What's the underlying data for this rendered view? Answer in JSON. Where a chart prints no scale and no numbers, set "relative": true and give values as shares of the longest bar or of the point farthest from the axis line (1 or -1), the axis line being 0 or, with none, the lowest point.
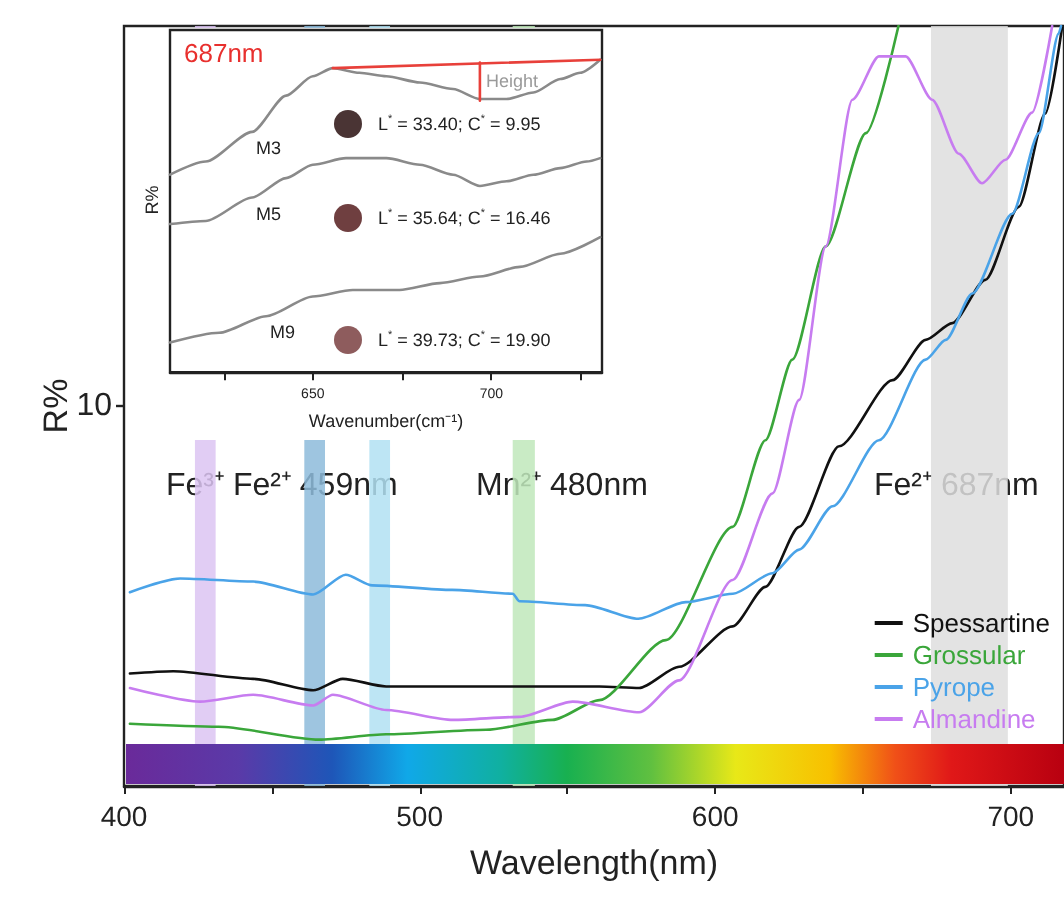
{
  "chart_data": [
    {
      "type": "line",
      "xlabel": "Wavelength(nm)",
      "ylabel": "R%",
      "relative": true,
      "xlim": [
        400,
        718
      ],
      "xticks": [
        400,
        {
          "value": 450,
          "label": null
        },
        500,
        {
          "value": 550,
          "label": null
        },
        600,
        {
          "value": 650,
          "label": null
        },
        700
      ],
      "legend": "bottom right",
      "series": [
        {
          "name": "Spessartine",
          "color": "#111111",
          "x": [
            402,
            416.7,
            443.7,
            464,
            474,
            488.7,
            533.8,
            560.8,
            574.3,
            587.8,
            605.9,
            617,
            628.4,
            641.9,
            660,
            671.2,
            680.2,
            691.4,
            702.7,
            711.7,
            717.4
          ],
          "values": [
            0.148,
            0.151,
            0.141,
            0.126,
            0.141,
            0.131,
            0.131,
            0.131,
            0.129,
            0.157,
            0.21,
            0.262,
            0.341,
            0.447,
            0.534,
            0.587,
            0.609,
            0.666,
            0.762,
            0.885,
            1
          ]
        },
        {
          "name": "Grossular",
          "color": "#3aa63a",
          "x": [
            402,
            432,
            466,
            488.7,
            522.5,
            545,
            560.8,
            583.3,
            605.9,
            617,
            626.1,
            637.4,
            651,
            662
          ],
          "values": [
            0.082,
            0.078,
            0.061,
            0.068,
            0.074,
            0.087,
            0.113,
            0.192,
            0.341,
            0.455,
            0.561,
            0.71,
            0.859,
            1
          ]
        },
        {
          "name": "Pyrope",
          "color": "#4aa3e8",
          "x": [
            402,
            419,
            443.7,
            464,
            475,
            484,
            511,
            531.5,
            533.8,
            556,
            574,
            590,
            606,
            619.4,
            628.4,
            639.7,
            655.4,
            671.2,
            678,
            687,
            700.5,
            709.5,
            716.2,
            717
          ],
          "values": [
            0.255,
            0.273,
            0.269,
            0.252,
            0.278,
            0.264,
            0.258,
            0.253,
            0.243,
            0.238,
            0.22,
            0.242,
            0.253,
            0.28,
            0.311,
            0.368,
            0.455,
            0.561,
            0.587,
            0.648,
            0.753,
            0.859,
            0.99,
            1
          ]
        },
        {
          "name": "Almandine",
          "color": "#c77cf0",
          "x": [
            402,
            425.7,
            443.7,
            464,
            470.7,
            488.7,
            511.3,
            533.8,
            551.8,
            574.3,
            587.8,
            605.9,
            619.4,
            628.4,
            637.4,
            646.4,
            655.4,
            664.4,
            673.4,
            682.4,
            690.3,
            698.2,
            707.2,
            714
          ],
          "values": [
            0.129,
            0.111,
            0.12,
            0.106,
            0.12,
            0.1,
            0.087,
            0.091,
            0.111,
            0.097,
            0.139,
            0.271,
            0.385,
            0.508,
            0.71,
            0.903,
            0.96,
            0.96,
            0.903,
            0.832,
            0.793,
            0.824,
            0.886,
            1
          ]
        }
      ],
      "bands": [
        {
          "axis": "x",
          "from": 424,
          "to": 431,
          "color": "#dcc4f2"
        },
        {
          "axis": "x",
          "from": 461,
          "to": 468,
          "color": "#8dbbdb"
        },
        {
          "axis": "x",
          "from": 483,
          "to": 490,
          "color": "#b2e0f2"
        },
        {
          "axis": "x",
          "from": 531.5,
          "to": 539,
          "color": "#bfe8bb"
        },
        {
          "axis": "x",
          "from": 673,
          "to": 699,
          "color": "#dedede"
        }
      ],
      "annotations": [
        "10",
        "Fe³⁺ Fe²⁺ 459nm",
        "Mn²⁺ 480nm",
        "Fe²⁺ 687nm"
      ]
    },
    {
      "type": "line",
      "title": "687nm",
      "xlabel": "Wavenumber(cm⁻¹)",
      "ylabel": "R%",
      "relative": true,
      "xlim": [
        610,
        731
      ],
      "xticks": [
        {
          "value": 625,
          "label": null
        },
        650,
        {
          "value": 675,
          "label": null
        },
        700,
        {
          "value": 725,
          "label": null
        }
      ],
      "series": [
        {
          "name": "M3",
          "color": "#8a8a8a",
          "x": [
            610,
            620,
            633,
            642.5,
            650,
            655.6,
            663,
            670.6,
            680,
            689.3,
            696.8,
            704.3,
            711.8,
            719.3,
            724.9,
            730.5
          ],
          "values": [
            0.632,
            0.674,
            0.769,
            0.885,
            0.947,
            0.973,
            0.958,
            0.947,
            0.927,
            0.906,
            0.874,
            0.874,
            0.895,
            0.938,
            0.958,
            1
          ]
        },
        {
          "name": "M5",
          "color": "#8a8a8a",
          "x": [
            610,
            620,
            633,
            642.5,
            650,
            659.3,
            670.6,
            680,
            689.3,
            696.8,
            704.3,
            711.8,
            719.3,
            726.7,
            730.5
          ],
          "values": [
            0.474,
            0.484,
            0.559,
            0.621,
            0.664,
            0.685,
            0.685,
            0.664,
            0.632,
            0.596,
            0.611,
            0.632,
            0.653,
            0.674,
            0.685
          ]
        },
        {
          "name": "M9",
          "color": "#8a8a8a",
          "x": [
            610,
            623.8,
            636.9,
            650,
            661.2,
            674.3,
            685.6,
            696.8,
            708,
            719.3,
            730.5
          ],
          "values": [
            0.095,
            0.126,
            0.179,
            0.242,
            0.263,
            0.263,
            0.285,
            0.306,
            0.337,
            0.379,
            0.432
          ]
        },
        {
          "color": "#e8403a",
          "x": [
            655.6,
            730.5
          ],
          "values": [
            0.973,
            1
          ]
        },
        {
          "color": "#e8403a",
          "x": [
            696.8,
            696.8
          ],
          "values": [
            0.991,
            0.869
          ]
        }
      ],
      "annotations": [
        {
          "text": "Height",
          "x": 696.8,
          "y": 0.931
        },
        "L$^{*}$ = 33.40; C$^{*}$ = 9.95",
        "L$^{*}$ = 35.64; C$^{*}$ = 16.46",
        "L$^{*}$ = 39.73; C$^{*}$ = 19.90"
      ]
    }
  ]
}
